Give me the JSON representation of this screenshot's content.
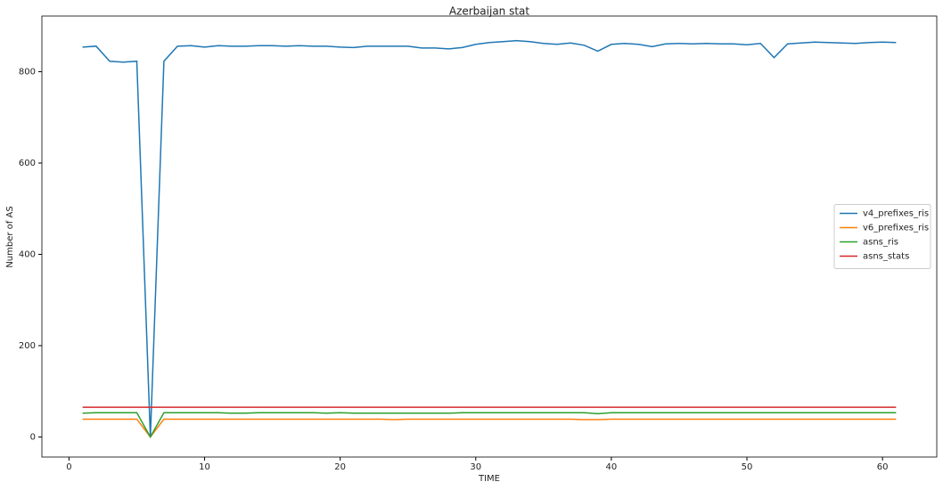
{
  "chart_data": {
    "type": "line",
    "title": "Azerbaijan stat",
    "x_label": "TIME",
    "y_label": "Number of AS",
    "x": [
      1,
      2,
      3,
      4,
      5,
      6,
      7,
      8,
      9,
      10,
      11,
      12,
      13,
      14,
      15,
      16,
      17,
      18,
      19,
      20,
      21,
      22,
      23,
      24,
      25,
      26,
      27,
      28,
      29,
      30,
      31,
      32,
      33,
      34,
      35,
      36,
      37,
      38,
      39,
      40,
      41,
      42,
      43,
      44,
      45,
      46,
      47,
      48,
      49,
      50,
      51,
      52,
      53,
      54,
      55,
      56,
      57,
      58,
      59,
      60,
      61
    ],
    "series": [
      {
        "name": "v4_prefixes_ris",
        "color": "#1f77b4",
        "values": [
          854,
          856,
          823,
          821,
          823,
          0,
          823,
          856,
          857,
          854,
          857,
          856,
          856,
          857,
          857,
          856,
          857,
          856,
          856,
          854,
          853,
          856,
          856,
          856,
          856,
          852,
          852,
          850,
          853,
          860,
          864,
          866,
          868,
          866,
          862,
          860,
          863,
          858,
          845,
          860,
          862,
          860,
          855,
          861,
          862,
          861,
          862,
          861,
          861,
          859,
          862,
          831,
          861,
          863,
          865,
          864,
          863,
          862,
          864,
          865,
          864
        ]
      },
      {
        "name": "v6_prefixes_ris",
        "color": "#ff7f0e",
        "values": [
          39,
          39,
          39,
          39,
          39,
          0,
          39,
          39,
          39,
          39,
          39,
          39,
          39,
          39,
          39,
          39,
          39,
          39,
          39,
          39,
          39,
          39,
          39,
          38,
          39,
          39,
          39,
          39,
          39,
          39,
          39,
          39,
          39,
          39,
          39,
          39,
          39,
          38,
          38,
          39,
          39,
          39,
          39,
          39,
          39,
          39,
          39,
          39,
          39,
          39,
          39,
          39,
          39,
          39,
          39,
          39,
          39,
          39,
          39,
          39,
          39
        ]
      },
      {
        "name": "asns_ris",
        "color": "#2ca02c",
        "values": [
          52,
          53,
          53,
          53,
          53,
          0,
          53,
          53,
          53,
          53,
          53,
          52,
          52,
          53,
          53,
          53,
          53,
          53,
          52,
          53,
          52,
          52,
          52,
          52,
          52,
          52,
          52,
          52,
          53,
          53,
          53,
          53,
          53,
          53,
          53,
          53,
          53,
          53,
          51,
          53,
          53,
          53,
          53,
          53,
          53,
          53,
          53,
          53,
          53,
          53,
          53,
          53,
          53,
          53,
          53,
          53,
          53,
          53,
          53,
          53,
          53
        ]
      },
      {
        "name": "asns_stats",
        "color": "#d62728",
        "values": [
          65,
          65,
          65,
          65,
          65,
          65,
          65,
          65,
          65,
          65,
          65,
          65,
          65,
          65,
          65,
          65,
          65,
          65,
          65,
          65,
          65,
          65,
          65,
          65,
          65,
          65,
          65,
          65,
          65,
          65,
          65,
          65,
          65,
          65,
          65,
          65,
          65,
          65,
          65,
          65,
          65,
          65,
          65,
          65,
          65,
          65,
          65,
          65,
          65,
          65,
          65,
          65,
          65,
          65,
          65,
          65,
          65,
          65,
          65,
          65,
          65
        ]
      }
    ],
    "xlim": [
      -2,
      64
    ],
    "ylim": [
      -44,
      922
    ],
    "xticks": [
      0,
      10,
      20,
      30,
      40,
      50,
      60
    ],
    "yticks": [
      0,
      200,
      400,
      600,
      800
    ],
    "grid": false,
    "legend": "center right"
  }
}
